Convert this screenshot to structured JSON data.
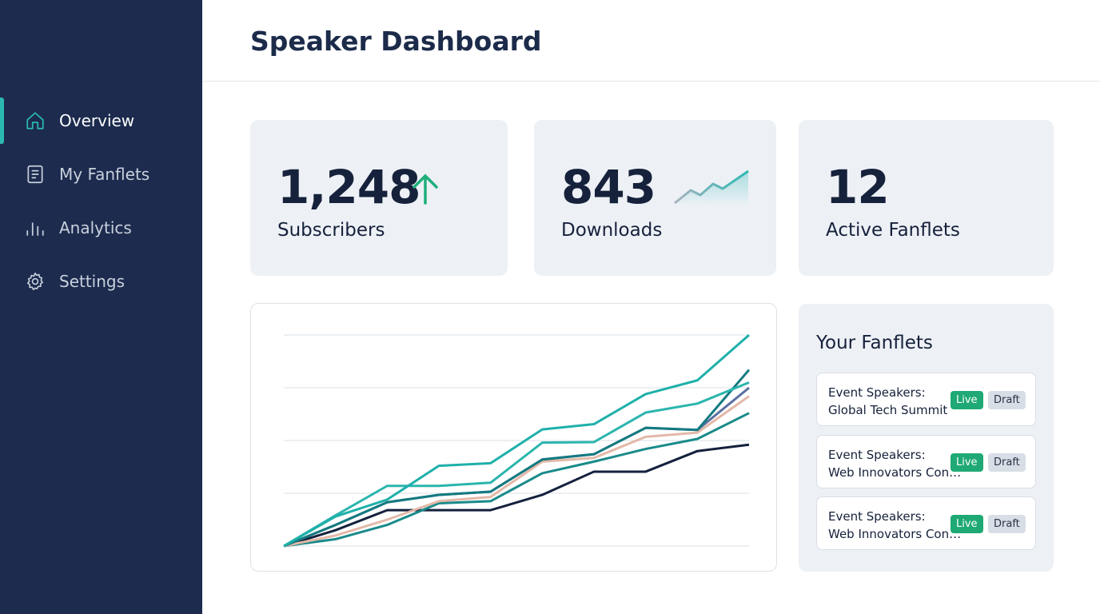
{
  "sidebar": {
    "items": [
      {
        "label": "Overview",
        "icon": "home-icon",
        "active": true
      },
      {
        "label": "My Fanflets",
        "icon": "document-icon"
      },
      {
        "label": "Analytics",
        "icon": "bar-chart-icon"
      },
      {
        "label": "Settings",
        "icon": "gear-icon"
      }
    ]
  },
  "header": {
    "title": "Speaker Dashboard"
  },
  "stats": [
    {
      "value": "1,248",
      "label": "Subscribers",
      "indicator": "arrow-up-icon"
    },
    {
      "value": "843",
      "label": "Downloads",
      "indicator": "sparkline-icon"
    },
    {
      "value": "12",
      "label": "Active Fanflets"
    }
  ],
  "colors": {
    "sidebar": "#1c2b4e",
    "accent": "#2bb8b3",
    "live": "#1fa974",
    "draft": "#d8dee6",
    "card": "#edf1f6"
  },
  "chart_data": {
    "type": "line",
    "title": "",
    "xlabel": "",
    "ylabel": "",
    "grid": true,
    "ylim": [
      0,
      4
    ],
    "x": [
      1,
      2,
      3,
      4,
      5,
      6,
      7,
      8,
      9,
      10
    ],
    "series": [
      {
        "color": "#1fb0aa",
        "values": [
          0,
          0.56,
          0.88,
          1.52,
          1.57,
          2.21,
          2.31,
          2.88,
          3.14,
          4.0
        ]
      },
      {
        "color": "#2bb5ae",
        "values": [
          0,
          0.58,
          1.14,
          1.14,
          1.2,
          1.96,
          1.97,
          2.53,
          2.7,
          3.1
        ]
      },
      {
        "color": "#137a80",
        "values": [
          0,
          0.4,
          0.83,
          0.97,
          1.03,
          1.64,
          1.74,
          2.24,
          2.2,
          3.34
        ]
      },
      {
        "color": "#5a6fa0",
        "values": [
          0,
          0.4,
          0.83,
          0.97,
          1.03,
          1.64,
          1.74,
          2.24,
          2.2,
          3.0
        ]
      },
      {
        "color": "#e3b8a8",
        "values": [
          0,
          0.2,
          0.5,
          0.85,
          0.93,
          1.6,
          1.67,
          2.07,
          2.15,
          2.84
        ]
      },
      {
        "color": "#1a8a8a",
        "values": [
          0,
          0.13,
          0.4,
          0.81,
          0.85,
          1.38,
          1.6,
          1.84,
          2.03,
          2.52
        ]
      },
      {
        "color": "#14213d",
        "values": [
          0,
          0.3,
          0.68,
          0.68,
          0.68,
          0.97,
          1.41,
          1.41,
          1.8,
          1.92
        ]
      }
    ]
  },
  "fanflets": {
    "title": "Your Fanflets",
    "live_label": "Live",
    "draft_label": "Draft",
    "items": [
      {
        "line1": "Event Speakers:",
        "line2": "Global Tech Summit"
      },
      {
        "line1": "Event Speakers:",
        "line2": "Web Innovators Conference"
      },
      {
        "line1": "Event Speakers:",
        "line2": "Web Innovators Conference"
      }
    ]
  }
}
